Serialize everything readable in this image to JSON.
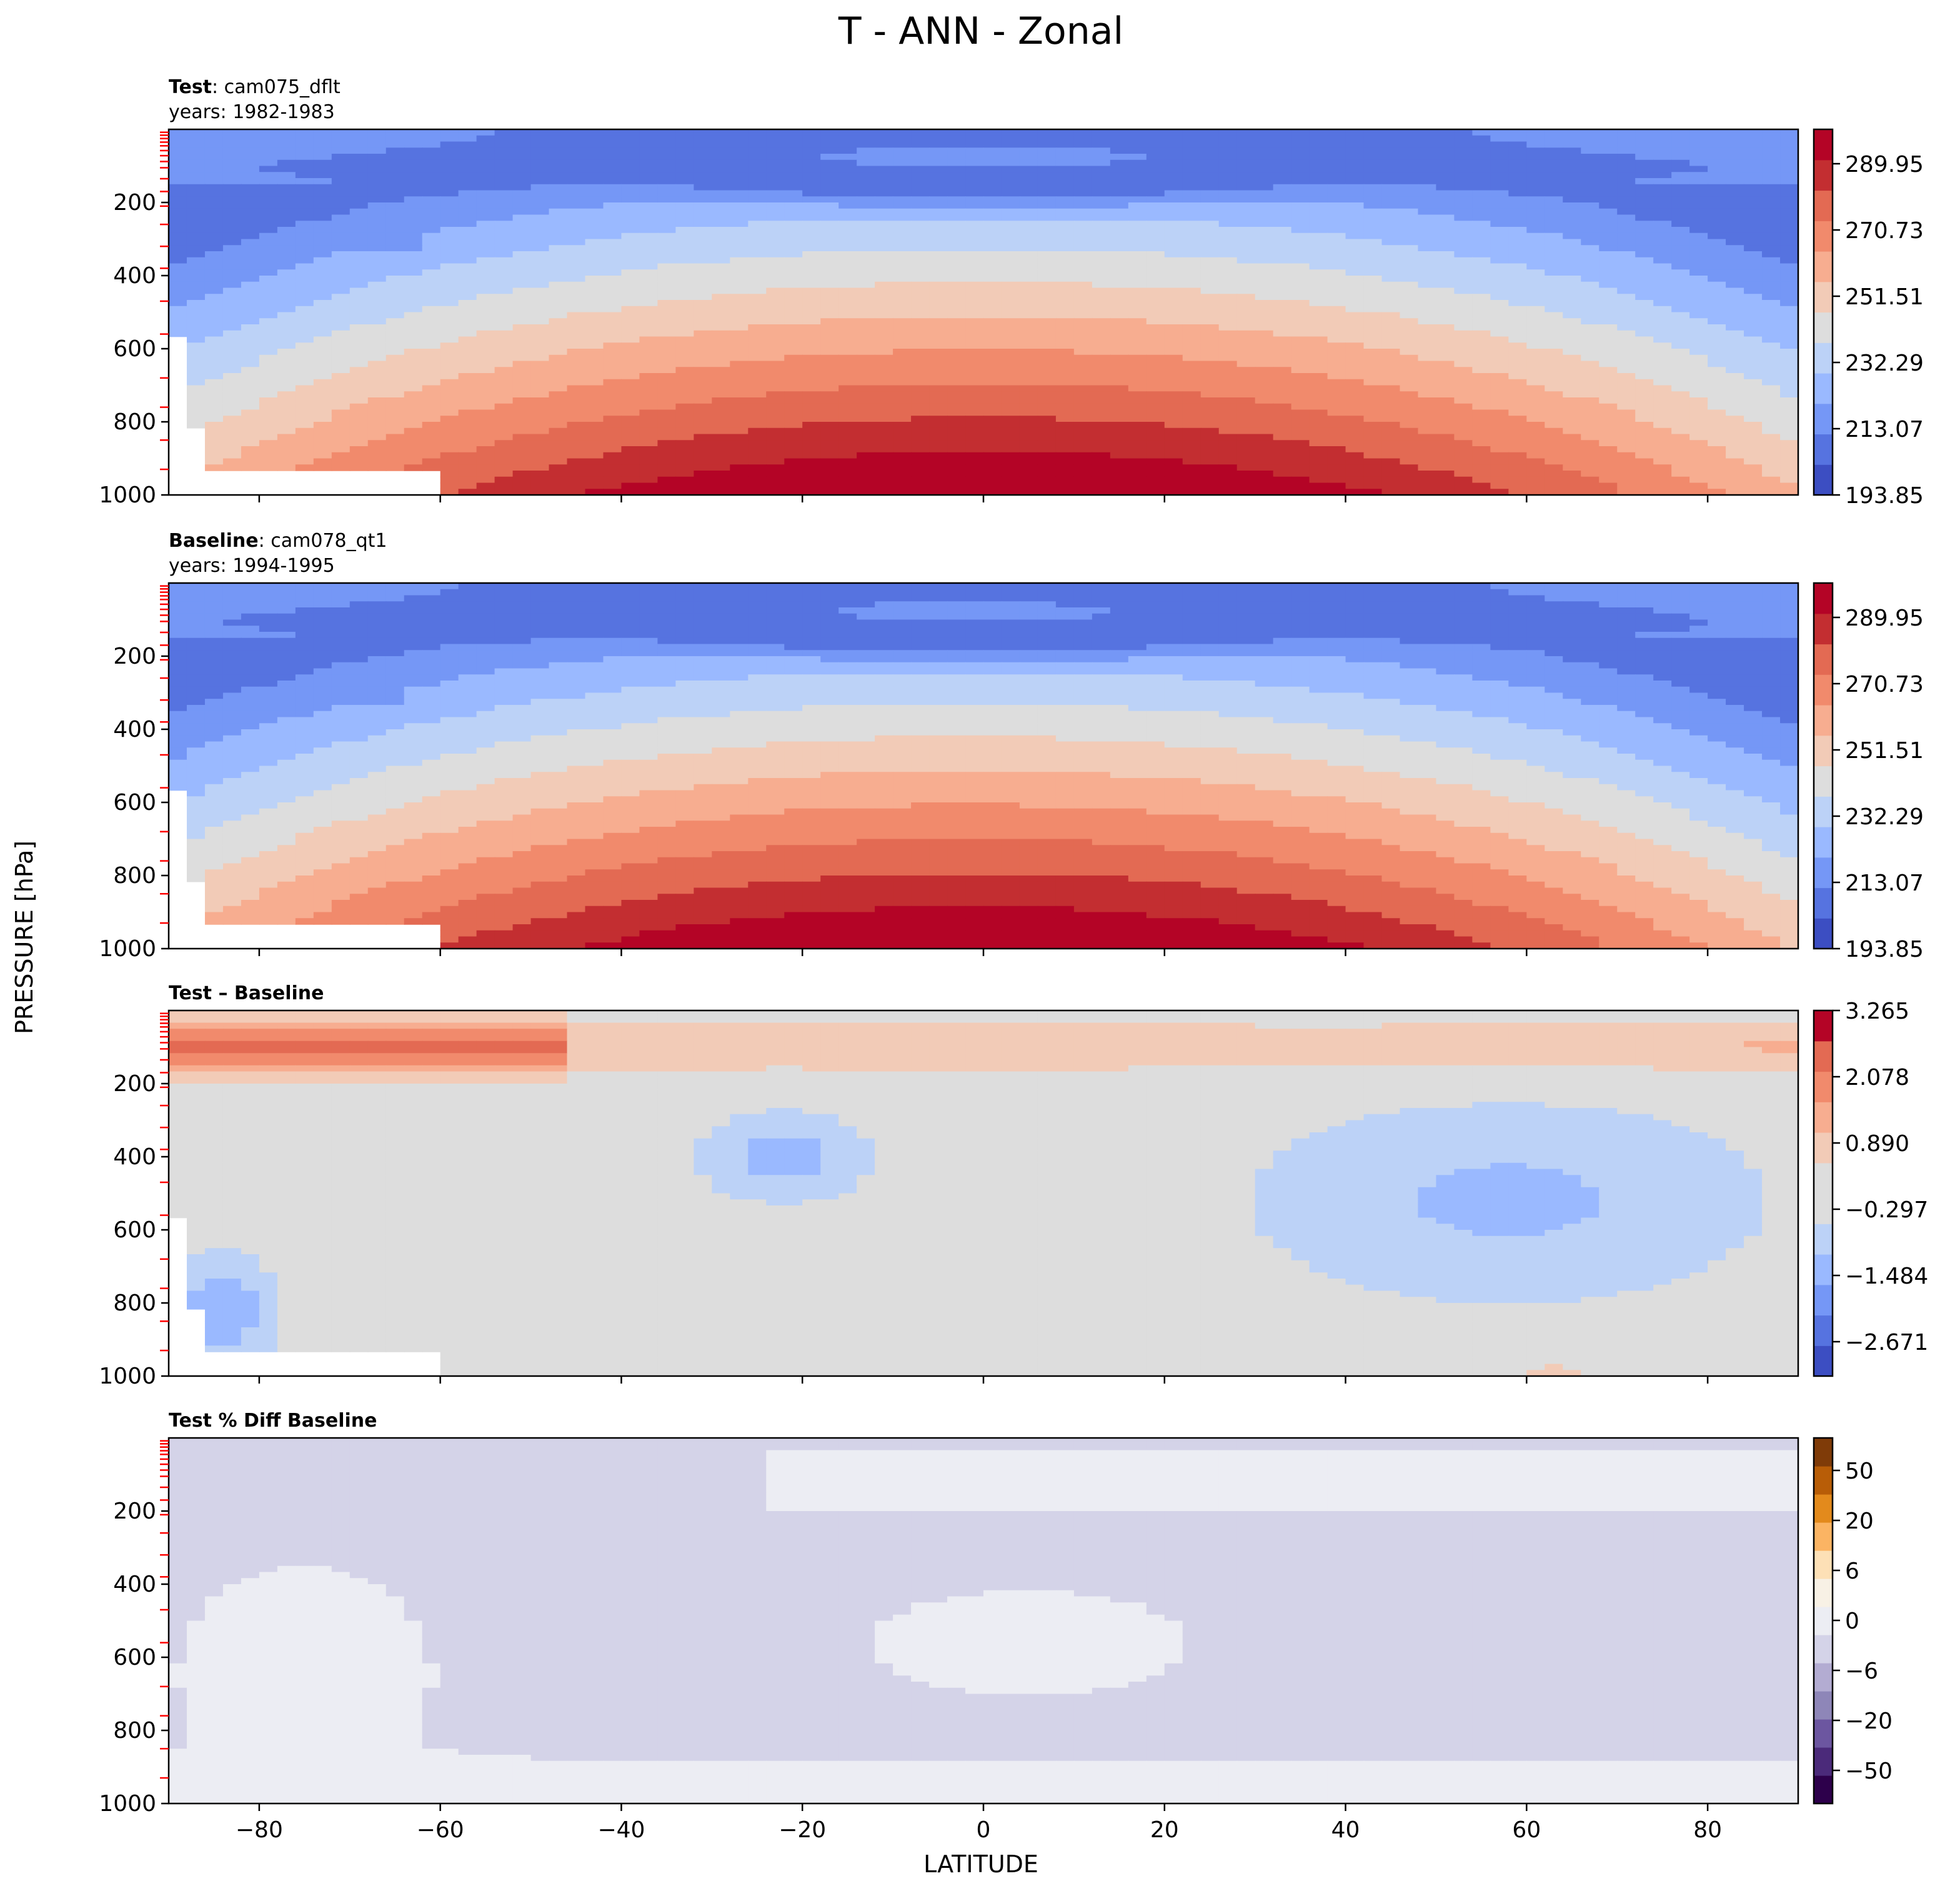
{
  "figure": {
    "title": "T - ANN - Zonal",
    "xlabel": "LATITUDE",
    "ylabel": "PRESSURE [hPa]"
  },
  "chart_data": [
    {
      "type": "heatmap",
      "panel": "test",
      "title_bold": "Test",
      "title_rest": ": cam075_dflt",
      "subtitle": "years: 1982-1983",
      "xlim": [
        -90,
        90
      ],
      "ylim": [
        1000,
        0
      ],
      "x_ticks": [
        -80,
        -60,
        -40,
        -20,
        0,
        20,
        40,
        60,
        80
      ],
      "y_ticks": [
        200,
        400,
        600,
        800,
        1000
      ],
      "field": "temperature",
      "colorbar_ticks": [
        "289.95",
        "270.73",
        "251.51",
        "232.29",
        "213.07",
        "193.85"
      ],
      "colorbar_range": [
        193.85,
        299.56
      ],
      "colorbar_colors": [
        "#3c4ec2",
        "#5673e0",
        "#7597f6",
        "#9ab9ff",
        "#bcd2f7",
        "#dddddd",
        "#f2cbb7",
        "#f7ad90",
        "#f18a6c",
        "#e36a53",
        "#c32e31",
        "#b40426"
      ]
    },
    {
      "type": "heatmap",
      "panel": "baseline",
      "title_bold": "Baseline",
      "title_rest": ": cam078_qt1",
      "subtitle": "years: 1994-1995",
      "xlim": [
        -90,
        90
      ],
      "ylim": [
        1000,
        0
      ],
      "x_ticks": [
        -80,
        -60,
        -40,
        -20,
        0,
        20,
        40,
        60,
        80
      ],
      "y_ticks": [
        200,
        400,
        600,
        800,
        1000
      ],
      "field": "temperature",
      "colorbar_ticks": [
        "289.95",
        "270.73",
        "251.51",
        "232.29",
        "213.07",
        "193.85"
      ],
      "colorbar_range": [
        193.85,
        299.56
      ],
      "colorbar_colors": [
        "#3c4ec2",
        "#5673e0",
        "#7597f6",
        "#9ab9ff",
        "#bcd2f7",
        "#dddddd",
        "#f2cbb7",
        "#f7ad90",
        "#f18a6c",
        "#e36a53",
        "#c32e31",
        "#b40426"
      ]
    },
    {
      "type": "heatmap",
      "panel": "difference",
      "title_bold": "Test – Baseline",
      "title_rest": "",
      "subtitle": "",
      "xlim": [
        -90,
        90
      ],
      "ylim": [
        1000,
        0
      ],
      "x_ticks": [
        -80,
        -60,
        -40,
        -20,
        0,
        20,
        40,
        60,
        80
      ],
      "y_ticks": [
        200,
        400,
        600,
        800,
        1000
      ],
      "field": "difference",
      "colorbar_ticks": [
        "3.265",
        "2.078",
        "0.890",
        "−0.297",
        "−1.484",
        "−2.671"
      ],
      "colorbar_range": [
        -3.265,
        3.265
      ],
      "colorbar_colors": [
        "#3c4ec2",
        "#5673e0",
        "#7597f6",
        "#9ab9ff",
        "#bcd2f7",
        "#dddddd",
        "#dddddd",
        "#f2cbb7",
        "#f7ad90",
        "#f18a6c",
        "#e36a53",
        "#b40426"
      ]
    },
    {
      "type": "heatmap",
      "panel": "percent",
      "title_bold": "Test % Diff Baseline",
      "title_rest": "",
      "subtitle": "",
      "xlim": [
        -90,
        90
      ],
      "ylim": [
        1000,
        0
      ],
      "x_ticks": [
        -80,
        -60,
        -40,
        -20,
        0,
        20,
        40,
        60,
        80
      ],
      "y_ticks": [
        200,
        400,
        600,
        800,
        1000
      ],
      "field": "percent",
      "colorbar_ticks": [
        "50",
        "20",
        "6",
        "0",
        "−6",
        "−20",
        "−50"
      ],
      "colorbar_range": [
        -100,
        100
      ],
      "colorbar_colors": [
        "#2d004b",
        "#4b2a7a",
        "#6c56a0",
        "#8e86b8",
        "#b3acd2",
        "#d4d3e8",
        "#ecedf3",
        "#f8f1e5",
        "#fde0b6",
        "#fbb463",
        "#e38a1c",
        "#b85d07",
        "#7f3b08"
      ]
    }
  ]
}
